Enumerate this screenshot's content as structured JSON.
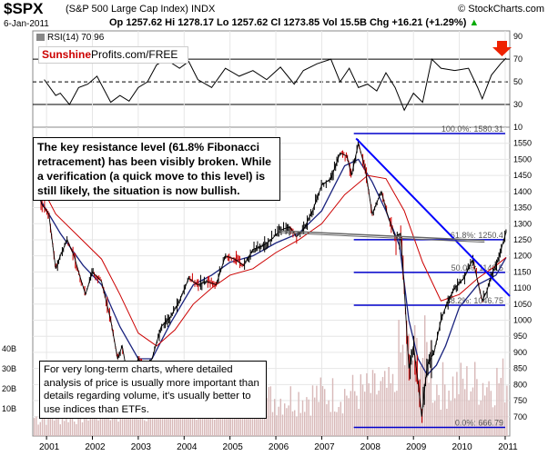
{
  "header": {
    "symbol": "$SPX",
    "description": "(S&P 500 Large Cap Index) INDX",
    "brand": "© StockCharts.com",
    "date": "6-Jan-2011",
    "quote": "Op 1257.62  Hi 1278.17  Lo 1257.62  Cl 1273.85  Vol 15.5B  Chg +16.21 (+1.29%)",
    "quote_marker": "▲"
  },
  "watermark": {
    "part1": "Sunshine",
    "part2": "Profits.com/FREE"
  },
  "callouts": {
    "top": "The key resistance level (61.8% Fibonacci retracement) has been visibly broken. While a verification (a quick  move to this level) is still likely, the situation is now bullish.",
    "bottom": "For very long-term charts, where detailed analysis of price is usually more important than details regarding volume, it's usually better to use indices than ETFs."
  },
  "colors": {
    "price": "#000000",
    "down_bars": "#cc0000",
    "ma_short": "#cc0000",
    "ma_long": "#1a237e",
    "trendline": "#0000ff",
    "fib": "#0000cc",
    "volume": "#d8b8b8",
    "arrow": "#ee2200"
  },
  "chart_data": [
    {
      "type": "line",
      "title": "RSI(14) 70.96",
      "ylim": [
        10,
        95
      ],
      "yticks": [
        "90",
        "70",
        "50",
        "30",
        "10"
      ],
      "reference_lines": [
        70,
        50,
        30
      ],
      "x": [
        2000.95,
        2001.2,
        2001.3,
        2001.5,
        2001.7,
        2001.9,
        2002.1,
        2002.4,
        2002.6,
        2002.8,
        2003.0,
        2003.2,
        2003.4,
        2003.6,
        2003.9,
        2004.1,
        2004.3,
        2004.6,
        2004.9,
        2005.2,
        2005.5,
        2005.8,
        2006.1,
        2006.4,
        2006.6,
        2006.9,
        2007.2,
        2007.4,
        2007.6,
        2007.8,
        2008.0,
        2008.2,
        2008.4,
        2008.6,
        2008.8,
        2009.0,
        2009.2,
        2009.4,
        2009.6,
        2009.9,
        2010.2,
        2010.4,
        2010.5,
        2010.7,
        2010.9,
        2011.02
      ],
      "y": [
        52,
        38,
        40,
        30,
        45,
        48,
        55,
        32,
        38,
        33,
        45,
        50,
        65,
        70,
        62,
        68,
        52,
        45,
        62,
        55,
        60,
        52,
        63,
        48,
        60,
        66,
        70,
        50,
        62,
        45,
        48,
        42,
        58,
        45,
        25,
        40,
        32,
        70,
        62,
        60,
        62,
        45,
        35,
        56,
        66,
        71
      ]
    },
    {
      "type": "line",
      "title": "",
      "ylim": [
        640,
        1600
      ],
      "yticks": [
        "1550",
        "1500",
        "1450",
        "1400",
        "1350",
        "1300",
        "1250",
        "1200",
        "1150",
        "1100",
        "1050",
        "1000",
        "950",
        "900",
        "850",
        "800",
        "750",
        "700"
      ],
      "xticks": [
        "2001",
        "2002",
        "2003",
        "2004",
        "2005",
        "2006",
        "2007",
        "2008",
        "2009",
        "2010",
        "2011"
      ],
      "x_range": [
        2000.7,
        2011.1
      ],
      "series": [
        {
          "role": "price",
          "x": [
            2000.75,
            2000.9,
            2001.05,
            2001.2,
            2001.3,
            2001.45,
            2001.6,
            2001.72,
            2001.85,
            2002.0,
            2002.2,
            2002.4,
            2002.55,
            2002.65,
            2002.8,
            2003.0,
            2003.15,
            2003.3,
            2003.5,
            2003.7,
            2003.9,
            2004.1,
            2004.3,
            2004.5,
            2004.7,
            2004.9,
            2005.1,
            2005.3,
            2005.5,
            2005.7,
            2005.9,
            2006.1,
            2006.3,
            2006.45,
            2006.6,
            2006.8,
            2007.0,
            2007.2,
            2007.4,
            2007.55,
            2007.65,
            2007.8,
            2007.95,
            2008.1,
            2008.3,
            2008.45,
            2008.6,
            2008.72,
            2008.8,
            2008.9,
            2009.0,
            2009.1,
            2009.18,
            2009.3,
            2009.45,
            2009.6,
            2009.75,
            2009.9,
            2010.1,
            2010.3,
            2010.4,
            2010.5,
            2010.6,
            2010.7,
            2010.85,
            2011.02
          ],
          "y": [
            1420,
            1360,
            1330,
            1160,
            1200,
            1250,
            1200,
            1140,
            1080,
            1150,
            1120,
            1000,
            880,
            920,
            800,
            880,
            850,
            880,
            980,
            1010,
            1060,
            1130,
            1110,
            1120,
            1110,
            1200,
            1190,
            1170,
            1220,
            1230,
            1250,
            1280,
            1290,
            1260,
            1280,
            1340,
            1420,
            1440,
            1520,
            1510,
            1450,
            1550,
            1470,
            1330,
            1400,
            1320,
            1260,
            1270,
            1100,
            850,
            920,
            810,
            700,
            860,
            900,
            1000,
            1060,
            1100,
            1130,
            1190,
            1120,
            1060,
            1090,
            1140,
            1190,
            1274
          ]
        },
        {
          "role": "moving-average-short",
          "x": [
            2000.8,
            2001.2,
            2001.7,
            2002.2,
            2002.6,
            2003.0,
            2003.4,
            2003.8,
            2004.2,
            2004.6,
            2005.0,
            2005.5,
            2006.0,
            2006.5,
            2007.0,
            2007.5,
            2008.0,
            2008.4,
            2008.8,
            2009.2,
            2009.6,
            2010.0,
            2010.4,
            2010.8,
            2011.02
          ],
          "y": [
            1440,
            1330,
            1260,
            1190,
            1080,
            960,
            920,
            970,
            1050,
            1100,
            1140,
            1160,
            1210,
            1250,
            1300,
            1390,
            1450,
            1440,
            1340,
            1180,
            1060,
            1080,
            1130,
            1170,
            1195
          ]
        },
        {
          "role": "moving-average-long",
          "x": [
            2000.8,
            2001.3,
            2001.8,
            2002.2,
            2002.6,
            2003.0,
            2003.3,
            2003.7,
            2004.2,
            2004.6,
            2005.0,
            2005.5,
            2006.0,
            2006.5,
            2007.0,
            2007.5,
            2007.8,
            2008.1,
            2008.4,
            2008.7,
            2008.9,
            2009.1,
            2009.3,
            2009.5,
            2009.7,
            2010.0,
            2010.4,
            2010.8,
            2011.02
          ],
          "y": [
            1390,
            1270,
            1170,
            1110,
            980,
            880,
            880,
            990,
            1110,
            1140,
            1180,
            1200,
            1240,
            1270,
            1340,
            1480,
            1500,
            1430,
            1340,
            1230,
            1000,
            880,
            830,
            860,
            920,
            1040,
            1110,
            1140,
            1195
          ]
        }
      ],
      "trendlines": [
        {
          "x": [
            2007.75,
            2011.1
          ],
          "y": [
            1565,
            1075
          ]
        },
        {
          "x": [
            2006.05,
            2010.55
          ],
          "y": [
            1278,
            1248
          ]
        }
      ],
      "fibonacci": [
        {
          "label": "100.0%: 1580.31",
          "value": 1580.31
        },
        {
          "label": "61.8%: 1250.4",
          "value": 1250.4
        },
        {
          "label": "50.0%: 1148.5",
          "value": 1148.5
        },
        {
          "label": "38.2%: 1046.75",
          "value": 1046.75
        },
        {
          "label": "0.0%: 666.79",
          "value": 666.79
        }
      ],
      "volume_ticks": [
        "40B",
        "30B",
        "20B",
        "10B"
      ]
    }
  ]
}
